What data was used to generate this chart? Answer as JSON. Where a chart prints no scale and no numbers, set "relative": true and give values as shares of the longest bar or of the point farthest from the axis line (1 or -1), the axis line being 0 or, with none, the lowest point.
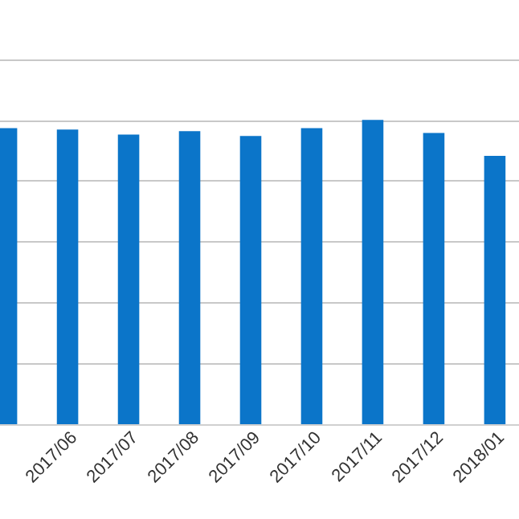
{
  "chart_data": {
    "type": "bar",
    "relative": true,
    "grid": "y",
    "categories": [
      null,
      "2017/06",
      "2017/07",
      "2017/08",
      "2017/09",
      "2017/10",
      "2017/11",
      "2017/12",
      "2018/01"
    ],
    "values": [
      0.973,
      0.968,
      0.952,
      0.963,
      0.947,
      0.973,
      1,
      0.957,
      0.882
    ],
    "color": "#0b75c9"
  }
}
